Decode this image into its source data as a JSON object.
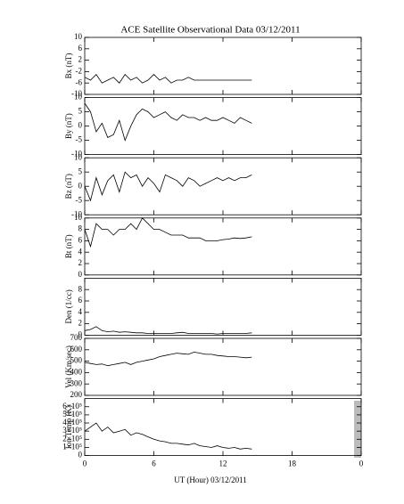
{
  "title": "ACE Satellite Observational Data   03/12/2011",
  "x_label": "UT (Hour)  03/12/2011",
  "chart_data": [
    {
      "type": "line",
      "y_label": "Bx (nT)",
      "color": "#000000",
      "ylim": [
        -10,
        10
      ],
      "yticks": [
        -10,
        -6,
        -2,
        2,
        6,
        10
      ],
      "x": [
        0,
        0.5,
        1,
        1.5,
        2,
        2.5,
        3,
        3.5,
        4,
        4.5,
        5,
        5.5,
        6,
        6.5,
        7,
        7.5,
        8,
        8.5,
        9,
        9.5,
        10,
        10.5,
        11,
        11.5,
        12,
        12.5,
        13,
        13.5,
        14,
        14.5
      ],
      "values": [
        -4,
        -5,
        -3,
        -6,
        -5,
        -4,
        -6,
        -3,
        -5,
        -4,
        -6,
        -5,
        -3,
        -5,
        -4,
        -6,
        -5,
        -5,
        -4,
        -5,
        -5,
        -5,
        -5,
        -5,
        -5,
        -5,
        -5,
        -5,
        -5,
        -5
      ]
    },
    {
      "type": "line",
      "y_label": "By (nT)",
      "color": "#000000",
      "ylim": [
        -10,
        10
      ],
      "yticks": [
        -10,
        -5,
        0,
        5,
        10
      ],
      "x": [
        0,
        0.5,
        1,
        1.5,
        2,
        2.5,
        3,
        3.5,
        4,
        4.5,
        5,
        5.5,
        6,
        6.5,
        7,
        7.5,
        8,
        8.5,
        9,
        9.5,
        10,
        10.5,
        11,
        11.5,
        12,
        12.5,
        13,
        13.5,
        14,
        14.5
      ],
      "values": [
        8,
        5,
        -2,
        1,
        -4,
        -3,
        2,
        -5,
        0,
        4,
        6,
        5,
        3,
        4,
        5,
        3,
        2,
        4,
        3,
        3,
        2,
        3,
        2,
        2,
        3,
        2,
        1,
        3,
        2,
        1
      ]
    },
    {
      "type": "line",
      "y_label": "Bz (nT)",
      "color": "#000000",
      "ylim": [
        -10,
        10
      ],
      "yticks": [
        -10,
        -5,
        0,
        5,
        10
      ],
      "x": [
        0,
        0.5,
        1,
        1.5,
        2,
        2.5,
        3,
        3.5,
        4,
        4.5,
        5,
        5.5,
        6,
        6.5,
        7,
        7.5,
        8,
        8.5,
        9,
        9.5,
        10,
        10.5,
        11,
        11.5,
        12,
        12.5,
        13,
        13.5,
        14,
        14.5
      ],
      "values": [
        0,
        -5,
        3,
        -3,
        2,
        4,
        -2,
        5,
        3,
        4,
        0,
        3,
        1,
        -2,
        4,
        3,
        2,
        0,
        3,
        2,
        0,
        1,
        2,
        3,
        2,
        3,
        2,
        3,
        3,
        4
      ]
    },
    {
      "type": "line",
      "y_label": "Bt (nT)",
      "color": "#000000",
      "ylim": [
        0,
        10
      ],
      "yticks": [
        0,
        2,
        4,
        6,
        8,
        10
      ],
      "x": [
        0,
        0.5,
        1,
        1.5,
        2,
        2.5,
        3,
        3.5,
        4,
        4.5,
        5,
        5.5,
        6,
        6.5,
        7,
        7.5,
        8,
        8.5,
        9,
        9.5,
        10,
        10.5,
        11,
        11.5,
        12,
        12.5,
        13,
        13.5,
        14,
        14.5
      ],
      "values": [
        8,
        5,
        9,
        8,
        8,
        7,
        8,
        8,
        9,
        8,
        10,
        9,
        8,
        8,
        7.5,
        7,
        7,
        7,
        6.5,
        6.5,
        6.5,
        6,
        6,
        6,
        6.2,
        6.3,
        6.5,
        6.4,
        6.5,
        6.7
      ]
    },
    {
      "type": "line",
      "y_label": "Den (1/cc)",
      "color": "#000000",
      "ylim": [
        0,
        10
      ],
      "yticks": [
        0,
        2,
        4,
        6,
        8
      ],
      "x": [
        0,
        0.5,
        1,
        1.5,
        2,
        2.5,
        3,
        3.5,
        4,
        4.5,
        5,
        5.5,
        6,
        6.5,
        7,
        7.5,
        8,
        8.5,
        9,
        9.5,
        10,
        10.5,
        11,
        11.5,
        12,
        12.5,
        13,
        13.5,
        14,
        14.5
      ],
      "values": [
        0.8,
        1,
        1.5,
        0.8,
        0.6,
        0.7,
        0.5,
        0.6,
        0.5,
        0.4,
        0.4,
        0.3,
        0.3,
        0.3,
        0.3,
        0.3,
        0.4,
        0.5,
        0.3,
        0.3,
        0.3,
        0.3,
        0.3,
        0.2,
        0.3,
        0.3,
        0.3,
        0.3,
        0.3,
        0.4
      ]
    },
    {
      "type": "line",
      "y_label": "Vel (Km/sec)",
      "color": "#000000",
      "ylim": [
        200,
        700
      ],
      "yticks": [
        200,
        300,
        400,
        500,
        600,
        700
      ],
      "x": [
        0,
        0.5,
        1,
        1.5,
        2,
        2.5,
        3,
        3.5,
        4,
        4.5,
        5,
        5.5,
        6,
        6.5,
        7,
        7.5,
        8,
        8.5,
        9,
        9.5,
        10,
        10.5,
        11,
        11.5,
        12,
        12.5,
        13,
        13.5,
        14,
        14.5
      ],
      "values": [
        490,
        480,
        470,
        475,
        460,
        470,
        480,
        490,
        470,
        490,
        500,
        510,
        520,
        540,
        550,
        560,
        570,
        565,
        560,
        580,
        570,
        560,
        560,
        550,
        545,
        540,
        540,
        535,
        530,
        535
      ]
    },
    {
      "type": "line",
      "y_label": "Ion Temp (K)",
      "color": "#000000",
      "ylim": [
        0,
        700000
      ],
      "yticks": [
        0,
        {
          "value": 100000,
          "label": "1×10⁵"
        },
        {
          "value": 200000,
          "label": "2×10⁵"
        },
        {
          "value": 300000,
          "label": "3×10⁵"
        },
        {
          "value": 400000,
          "label": "4×10⁵"
        },
        {
          "value": 500000,
          "label": "5×10⁵"
        },
        {
          "value": 600000,
          "label": "6×10⁵"
        }
      ],
      "xlim": [
        0,
        24
      ],
      "xticks": [
        0,
        6,
        12,
        18,
        {
          "value": 24,
          "label": "0"
        }
      ],
      "x": [
        0,
        0.5,
        1,
        1.5,
        2,
        2.5,
        3,
        3.5,
        4,
        4.5,
        5,
        5.5,
        6,
        6.5,
        7,
        7.5,
        8,
        8.5,
        9,
        9.5,
        10,
        10.5,
        11,
        11.5,
        12,
        12.5,
        13,
        13.5,
        14,
        14.5
      ],
      "values": [
        300000,
        350000,
        400000,
        300000,
        350000,
        280000,
        300000,
        320000,
        250000,
        280000,
        260000,
        230000,
        200000,
        180000,
        170000,
        150000,
        150000,
        140000,
        130000,
        150000,
        120000,
        110000,
        100000,
        120000,
        100000,
        90000,
        100000,
        80000,
        90000,
        80000
      ]
    }
  ]
}
